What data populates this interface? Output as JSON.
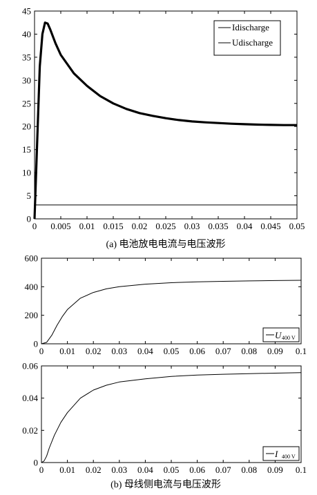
{
  "chart_data": [
    {
      "type": "line",
      "caption": "(a)  电池放电电流与电压波形",
      "xlim": [
        0,
        0.05
      ],
      "ylim": [
        0,
        45
      ],
      "xticks": [
        "0",
        "0.005",
        "0.01",
        "0.015",
        "0.02",
        "0.025",
        "0.03",
        "0.035",
        "0.04",
        "0.045",
        "0.05"
      ],
      "yticks": [
        "0",
        "5",
        "10",
        "15",
        "20",
        "25",
        "30",
        "35",
        "40",
        "45"
      ],
      "grid": false,
      "legend_position": "top-right",
      "series": [
        {
          "name": "Idischarge",
          "color": "#000000",
          "x": [
            0,
            0.0003,
            0.0006,
            0.001,
            0.0015,
            0.002,
            0.0025,
            0.003,
            0.004,
            0.005,
            0.0075,
            0.01,
            0.0125,
            0.015,
            0.0175,
            0.02,
            0.0225,
            0.025,
            0.0275,
            0.03,
            0.0325,
            0.035,
            0.0375,
            0.04,
            0.0425,
            0.045,
            0.0475,
            0.05
          ],
          "y": [
            0,
            10,
            20,
            33,
            40,
            42.5,
            42.3,
            41,
            38,
            35.5,
            31.5,
            28.8,
            26.6,
            25,
            23.8,
            22.9,
            22.3,
            21.8,
            21.4,
            21.1,
            20.9,
            20.75,
            20.6,
            20.5,
            20.4,
            20.35,
            20.3,
            20.3
          ]
        },
        {
          "name": "Udischarge",
          "color": "#000000",
          "x": [
            0,
            0.05
          ],
          "y": [
            3,
            3
          ]
        }
      ]
    },
    {
      "type": "line",
      "xlim": [
        0,
        0.1
      ],
      "ylim": [
        0,
        600
      ],
      "xticks": [
        "0",
        "0.01",
        "0.02",
        "0.03",
        "0.04",
        "0.05",
        "0.06",
        "0.07",
        "0.08",
        "0.09",
        "0.1"
      ],
      "yticks": [
        "0",
        "200",
        "400",
        "600"
      ],
      "grid": false,
      "legend_position": "bottom-right",
      "series": [
        {
          "name": "U",
          "name_subscript": "400 V",
          "color": "#000000",
          "x": [
            0,
            0.002,
            0.004,
            0.006,
            0.008,
            0.01,
            0.015,
            0.02,
            0.025,
            0.03,
            0.04,
            0.05,
            0.06,
            0.07,
            0.08,
            0.09,
            0.1
          ],
          "y": [
            0,
            10,
            60,
            130,
            190,
            240,
            320,
            360,
            385,
            400,
            418,
            428,
            434,
            438,
            441,
            443,
            445
          ]
        }
      ]
    },
    {
      "type": "line",
      "caption": "(b)  母线侧电流与电压波形",
      "xlim": [
        0,
        0.1
      ],
      "ylim": [
        0,
        0.06
      ],
      "xticks": [
        "0",
        "0.01",
        "0.02",
        "0.03",
        "0.04",
        "0.05",
        "0.06",
        "0.07",
        "0.08",
        "0.09",
        "0.1"
      ],
      "yticks": [
        "0",
        "0.02",
        "0.04",
        "0.06"
      ],
      "grid": false,
      "legend_position": "bottom-right",
      "series": [
        {
          "name": "I",
          "name_subscript": "400 V",
          "color": "#000000",
          "x": [
            0,
            0.001,
            0.002,
            0.003,
            0.005,
            0.0075,
            0.01,
            0.015,
            0.02,
            0.025,
            0.03,
            0.04,
            0.05,
            0.06,
            0.07,
            0.08,
            0.09,
            0.1
          ],
          "y": [
            0,
            0.001,
            0.004,
            0.009,
            0.017,
            0.025,
            0.031,
            0.04,
            0.045,
            0.048,
            0.05,
            0.052,
            0.0535,
            0.0543,
            0.0548,
            0.0552,
            0.0555,
            0.0558
          ]
        }
      ]
    }
  ]
}
